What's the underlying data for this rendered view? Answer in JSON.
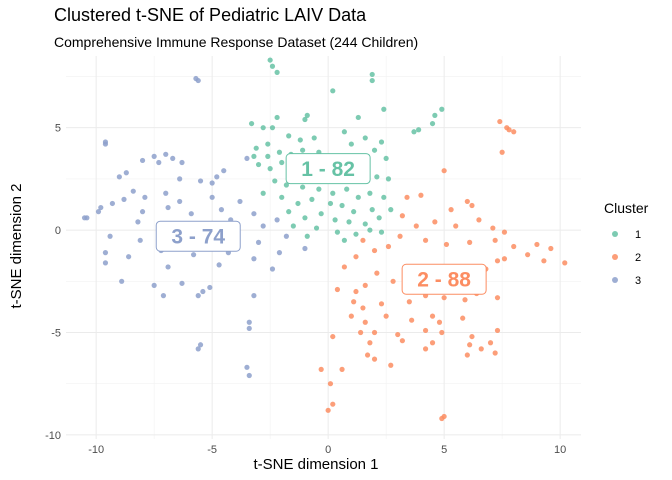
{
  "chart_data": {
    "type": "scatter",
    "title": "Clustered t-SNE of Pediatric LAIV Data",
    "subtitle": "Comprehensive Immune Response Dataset (244 Children)",
    "xlabel": "t-SNE dimension 1",
    "ylabel": "t-SNE dimension 2",
    "xlim": [
      -11.3,
      10.9
    ],
    "ylim": [
      -10.2,
      8.5
    ],
    "xticks": [
      -10,
      -5,
      0,
      5,
      10
    ],
    "yticks": [
      -10,
      -5,
      0,
      5
    ],
    "grid": true,
    "legend": {
      "title": "Cluster",
      "position": "right"
    },
    "series": [
      {
        "name": "1",
        "color": "#66c2a5",
        "label": "1 - 82",
        "label_at": [
          0,
          3
        ],
        "points": [
          [
            -2.5,
            8.3
          ],
          [
            -2.4,
            8.0
          ],
          [
            -2.2,
            7.7
          ],
          [
            1.9,
            7.6
          ],
          [
            1.9,
            7.3
          ],
          [
            0.2,
            6.8
          ],
          [
            -3.3,
            5.2
          ],
          [
            -2.2,
            5.5
          ],
          [
            -1.0,
            5.4
          ],
          [
            -0.9,
            5.6
          ],
          [
            -2.8,
            5.0
          ],
          [
            -2.4,
            5.0
          ],
          [
            1.3,
            5.5
          ],
          [
            1.6,
            4.5
          ],
          [
            2.4,
            5.9
          ],
          [
            4.6,
            5.6
          ],
          [
            4.9,
            5.9
          ],
          [
            4.5,
            5.2
          ],
          [
            3.9,
            4.9
          ],
          [
            3.7,
            4.8
          ],
          [
            -3.1,
            4.0
          ],
          [
            -2.6,
            4.2
          ],
          [
            -1.7,
            4.6
          ],
          [
            -1.2,
            4.4
          ],
          [
            -0.6,
            4.5
          ],
          [
            0.7,
            4.8
          ],
          [
            1.0,
            4.2
          ],
          [
            2.3,
            4.3
          ],
          [
            2.0,
            3.9
          ],
          [
            -3.2,
            3.6
          ],
          [
            -2.6,
            3.6
          ],
          [
            -2.1,
            3.8
          ],
          [
            -1.6,
            3.7
          ],
          [
            -1.1,
            3.9
          ],
          [
            -0.4,
            3.8
          ],
          [
            0.3,
            3.5
          ],
          [
            1.2,
            3.4
          ],
          [
            1.7,
            3.6
          ],
          [
            2.5,
            3.5
          ],
          [
            -3.0,
            3.2
          ],
          [
            -2.5,
            3.0
          ],
          [
            -2.0,
            3.3
          ],
          [
            -1.6,
            2.9
          ],
          [
            -0.8,
            2.6
          ],
          [
            -0.3,
            2.7
          ],
          [
            0.5,
            2.4
          ],
          [
            1.5,
            2.4
          ],
          [
            2.1,
            2.6
          ],
          [
            2.6,
            2.5
          ],
          [
            -2.3,
            2.4
          ],
          [
            -1.8,
            2.2
          ],
          [
            -1.1,
            2.1
          ],
          [
            -0.4,
            2.0
          ],
          [
            0.2,
            1.8
          ],
          [
            0.8,
            2.0
          ],
          [
            1.3,
            1.6
          ],
          [
            1.8,
            1.8
          ],
          [
            2.4,
            1.6
          ],
          [
            -2.8,
            1.8
          ],
          [
            -2.0,
            1.6
          ],
          [
            -1.3,
            1.3
          ],
          [
            -0.7,
            1.5
          ],
          [
            0.1,
            1.3
          ],
          [
            0.6,
            1.2
          ],
          [
            1.1,
            0.9
          ],
          [
            1.9,
            1.0
          ],
          [
            2.7,
            1.0
          ],
          [
            -1.7,
            0.9
          ],
          [
            -1.0,
            0.6
          ],
          [
            -0.3,
            0.8
          ],
          [
            0.3,
            0.5
          ],
          [
            0.9,
            0.4
          ],
          [
            1.6,
            0.3
          ],
          [
            2.2,
            0.6
          ],
          [
            -1.5,
            0.2
          ],
          [
            -0.5,
            0.1
          ],
          [
            0.4,
            -0.1
          ],
          [
            1.2,
            -0.2
          ],
          [
            1.8,
            0.0
          ],
          [
            2.3,
            -0.1
          ],
          [
            -0.9,
            -0.3
          ],
          [
            0.7,
            -0.5
          ]
        ]
      },
      {
        "name": "2",
        "color": "#fc8d62",
        "label": "2 - 88",
        "label_at": [
          5,
          -2.4
        ],
        "points": [
          [
            7.4,
            5.3
          ],
          [
            7.7,
            5.0
          ],
          [
            7.8,
            4.9
          ],
          [
            8.0,
            4.8
          ],
          [
            7.5,
            3.8
          ],
          [
            5.0,
            2.9
          ],
          [
            3.4,
            1.6
          ],
          [
            4.0,
            1.7
          ],
          [
            6.0,
            1.4
          ],
          [
            6.2,
            1.2
          ],
          [
            5.3,
            1.0
          ],
          [
            3.2,
            0.7
          ],
          [
            3.8,
            0.2
          ],
          [
            4.6,
            0.4
          ],
          [
            5.5,
            0.2
          ],
          [
            6.5,
            0.5
          ],
          [
            7.1,
            0.1
          ],
          [
            7.6,
            -0.1
          ],
          [
            3.1,
            -0.3
          ],
          [
            4.2,
            -0.5
          ],
          [
            5.1,
            -0.7
          ],
          [
            6.1,
            -0.6
          ],
          [
            7.2,
            -0.5
          ],
          [
            8.0,
            -0.8
          ],
          [
            9.0,
            -0.7
          ],
          [
            9.6,
            -0.9
          ],
          [
            8.6,
            -1.2
          ],
          [
            7.6,
            -1.4
          ],
          [
            7.3,
            -1.5
          ],
          [
            10.2,
            -1.6
          ],
          [
            9.3,
            -1.5
          ],
          [
            2.6,
            -0.8
          ],
          [
            2.0,
            -1.0
          ],
          [
            1.5,
            -0.5
          ],
          [
            1.2,
            -1.3
          ],
          [
            0.7,
            -1.8
          ],
          [
            2.1,
            -2.1
          ],
          [
            3.3,
            -2.0
          ],
          [
            3.9,
            -1.9
          ],
          [
            6.1,
            -1.8
          ],
          [
            6.8,
            -1.9
          ],
          [
            2.8,
            -2.5
          ],
          [
            1.6,
            -2.7
          ],
          [
            1.2,
            -3.0
          ],
          [
            0.4,
            -2.9
          ],
          [
            1.1,
            -3.5
          ],
          [
            1.5,
            -3.8
          ],
          [
            2.3,
            -3.6
          ],
          [
            3.5,
            -3.5
          ],
          [
            4.2,
            -3.2
          ],
          [
            5.0,
            -3.3
          ],
          [
            5.9,
            -3.4
          ],
          [
            6.4,
            -3.1
          ],
          [
            7.3,
            -3.3
          ],
          [
            1.0,
            -4.2
          ],
          [
            1.6,
            -4.5
          ],
          [
            2.5,
            -4.2
          ],
          [
            3.6,
            -4.4
          ],
          [
            4.5,
            -4.2
          ],
          [
            4.8,
            -4.5
          ],
          [
            5.8,
            -4.3
          ],
          [
            1.4,
            -5.0
          ],
          [
            2.0,
            -5.0
          ],
          [
            3.0,
            -5.1
          ],
          [
            4.2,
            -4.9
          ],
          [
            4.9,
            -5.0
          ],
          [
            6.2,
            -5.2
          ],
          [
            7.3,
            -4.9
          ],
          [
            1.8,
            -5.5
          ],
          [
            3.2,
            -5.4
          ],
          [
            4.5,
            -5.5
          ],
          [
            6.1,
            -5.6
          ],
          [
            6.6,
            -5.8
          ],
          [
            7.0,
            -5.5
          ],
          [
            7.2,
            -6.0
          ],
          [
            6.0,
            -6.1
          ],
          [
            4.2,
            -5.8
          ],
          [
            1.7,
            -6.1
          ],
          [
            2.0,
            -6.3
          ],
          [
            2.7,
            -6.6
          ],
          [
            0.2,
            -5.2
          ],
          [
            -0.3,
            -6.8
          ],
          [
            0.6,
            -6.8
          ],
          [
            0.1,
            -7.5
          ],
          [
            0.2,
            -8.5
          ],
          [
            0.0,
            -8.8
          ],
          [
            5.0,
            -9.1
          ],
          [
            4.9,
            -9.2
          ]
        ]
      },
      {
        "name": "3",
        "color": "#8da0cb",
        "label": "3 - 74",
        "label_at": [
          -5.6,
          -0.3
        ],
        "points": [
          [
            -5.7,
            7.4
          ],
          [
            -5.6,
            7.3
          ],
          [
            -9.6,
            4.3
          ],
          [
            -9.6,
            4.2
          ],
          [
            -8.0,
            3.4
          ],
          [
            -7.5,
            3.6
          ],
          [
            -7.0,
            3.7
          ],
          [
            -7.3,
            3.3
          ],
          [
            -6.7,
            3.5
          ],
          [
            -6.3,
            3.3
          ],
          [
            -3.5,
            3.5
          ],
          [
            -8.7,
            2.8
          ],
          [
            -9.0,
            2.6
          ],
          [
            -6.4,
            2.5
          ],
          [
            -5.5,
            2.4
          ],
          [
            -5.0,
            2.3
          ],
          [
            -4.8,
            2.6
          ],
          [
            -4.5,
            2.9
          ],
          [
            -8.4,
            1.9
          ],
          [
            -7.9,
            1.6
          ],
          [
            -7.0,
            1.8
          ],
          [
            -6.4,
            1.4
          ],
          [
            -5.0,
            1.6
          ],
          [
            -3.8,
            1.4
          ],
          [
            -9.8,
            1.1
          ],
          [
            -9.3,
            1.3
          ],
          [
            -8.8,
            1.5
          ],
          [
            -8.0,
            0.9
          ],
          [
            -6.9,
            1.1
          ],
          [
            -5.9,
            0.8
          ],
          [
            -4.6,
            1.0
          ],
          [
            -3.2,
            0.8
          ],
          [
            -10.5,
            0.6
          ],
          [
            -10.4,
            0.6
          ],
          [
            -9.9,
            0.9
          ],
          [
            -8.2,
            0.4
          ],
          [
            -7.1,
            0.3
          ],
          [
            -5.3,
            0.3
          ],
          [
            -4.2,
            0.5
          ],
          [
            -2.8,
            0.2
          ],
          [
            -2.2,
            0.5
          ],
          [
            -9.4,
            -0.3
          ],
          [
            -8.1,
            -0.5
          ],
          [
            -6.5,
            -0.4
          ],
          [
            -5.1,
            -0.6
          ],
          [
            -4.0,
            -0.2
          ],
          [
            -3.0,
            -0.6
          ],
          [
            -1.8,
            -0.3
          ],
          [
            -9.6,
            -1.1
          ],
          [
            -8.6,
            -1.3
          ],
          [
            -7.2,
            -1.0
          ],
          [
            -5.8,
            -1.2
          ],
          [
            -4.3,
            -1.1
          ],
          [
            -3.2,
            -1.4
          ],
          [
            -2.1,
            -1.1
          ],
          [
            -1.0,
            -0.9
          ],
          [
            -9.6,
            -1.6
          ],
          [
            -6.9,
            -1.8
          ],
          [
            -4.7,
            -1.7
          ],
          [
            -2.4,
            -1.9
          ],
          [
            -8.9,
            -2.5
          ],
          [
            -7.5,
            -2.7
          ],
          [
            -6.3,
            -2.6
          ],
          [
            -5.1,
            -2.8
          ],
          [
            -5.4,
            -3.0
          ],
          [
            -3.2,
            -3.2
          ],
          [
            -7.1,
            -3.2
          ],
          [
            -5.6,
            -3.2
          ],
          [
            -3.4,
            -4.5
          ],
          [
            -3.4,
            -4.8
          ],
          [
            -5.6,
            -5.8
          ],
          [
            -5.5,
            -5.6
          ],
          [
            -3.5,
            -6.7
          ],
          [
            -3.4,
            -7.1
          ]
        ]
      }
    ]
  }
}
